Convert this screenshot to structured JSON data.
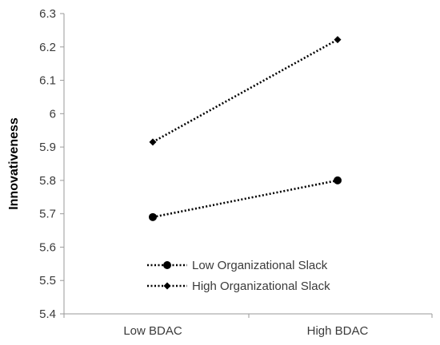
{
  "chart_data": {
    "type": "line",
    "title": "",
    "xlabel": "",
    "ylabel": "Innovativeness",
    "categories": [
      "Low BDAC",
      "High BDAC"
    ],
    "ylim": [
      5.4,
      6.3
    ],
    "yticks": [
      "5.4",
      "5.5",
      "5.6",
      "5.7",
      "5.8",
      "5.9",
      "6",
      "6.1",
      "6.2",
      "6.3"
    ],
    "grid": false,
    "legend_position": "bottom-center",
    "series": [
      {
        "name": "Low Organizational Slack",
        "values": [
          5.69,
          5.8
        ],
        "marker": "circle",
        "line_style": "dotted",
        "color": "#000000"
      },
      {
        "name": "High Organizational Slack",
        "values": [
          5.915,
          6.222
        ],
        "marker": "diamond",
        "line_style": "dotted",
        "color": "#000000"
      }
    ]
  }
}
